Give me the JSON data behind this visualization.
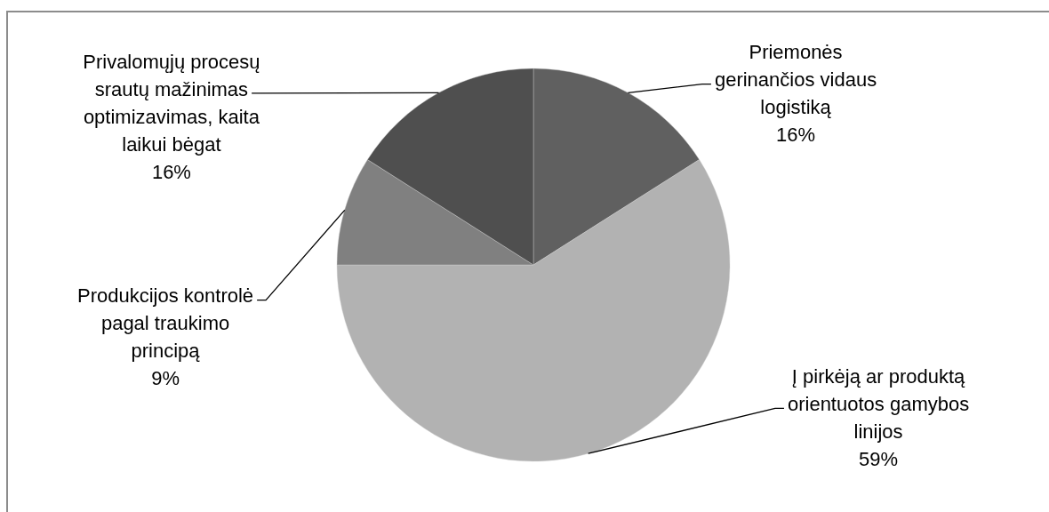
{
  "chart_data": {
    "type": "pie",
    "categories": [
      "Priemonės gerinančios vidaus logistiką",
      "Į pirkėją ar produktą orientuotos gamybos linijos",
      "Produkcijos kontrolė pagal traukimo principą",
      "Privalomųjų procesų srautų mažinimas optimizavimas, kaita laikui bėgat"
    ],
    "values": [
      16,
      59,
      9,
      16
    ],
    "colors": [
      "#606060",
      "#b2b2b2",
      "#808080",
      "#4f4f4f"
    ],
    "value_labels": [
      "16%",
      "59%",
      "9%",
      "16%"
    ]
  }
}
